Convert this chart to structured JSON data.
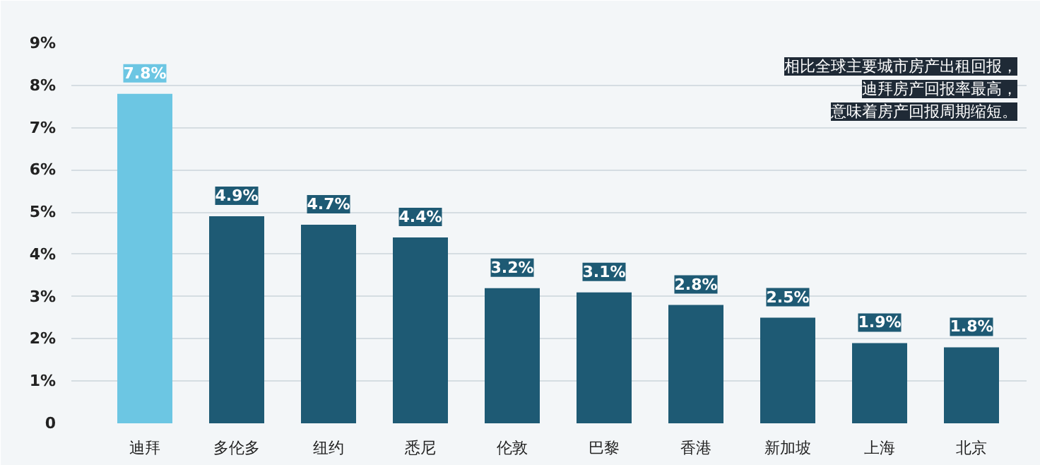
{
  "chart_data": {
    "type": "bar",
    "categories": [
      "迪拜",
      "多伦多",
      "纽约",
      "悉尼",
      "伦敦",
      "巴黎",
      "香港",
      "新加坡",
      "上海",
      "北京"
    ],
    "values": [
      7.8,
      4.9,
      4.7,
      4.4,
      3.2,
      3.1,
      2.8,
      2.5,
      1.9,
      1.8
    ],
    "colors": [
      "#6cc6e3",
      "#1e5a74",
      "#1e5a74",
      "#1e5a74",
      "#1e5a74",
      "#1e5a74",
      "#1e5a74",
      "#1e5a74",
      "#1e5a74",
      "#1e5a74"
    ],
    "value_labels": [
      "7.8%",
      "4.9%",
      "4.7%",
      "4.4%",
      "3.2%",
      "3.1%",
      "2.8%",
      "2.5%",
      "1.9%",
      "1.8%"
    ],
    "ylim": [
      0,
      9
    ],
    "yticks": [
      {
        "value": 0,
        "label": "0"
      },
      {
        "value": 1,
        "label": "1%"
      },
      {
        "value": 2,
        "label": "2%"
      },
      {
        "value": 3,
        "label": "3%"
      },
      {
        "value": 4,
        "label": "4%"
      },
      {
        "value": 5,
        "label": "5%"
      },
      {
        "value": 6,
        "label": "6%"
      },
      {
        "value": 7,
        "label": "7%"
      },
      {
        "value": 8,
        "label": "8%"
      },
      {
        "value": 9,
        "label": "9%"
      }
    ],
    "grid": "y",
    "annotations": [
      "相比全球主要城市房产出租回报，",
      "迪拜房产回报率最高，",
      "意味着房产回报周期缩短。"
    ]
  }
}
